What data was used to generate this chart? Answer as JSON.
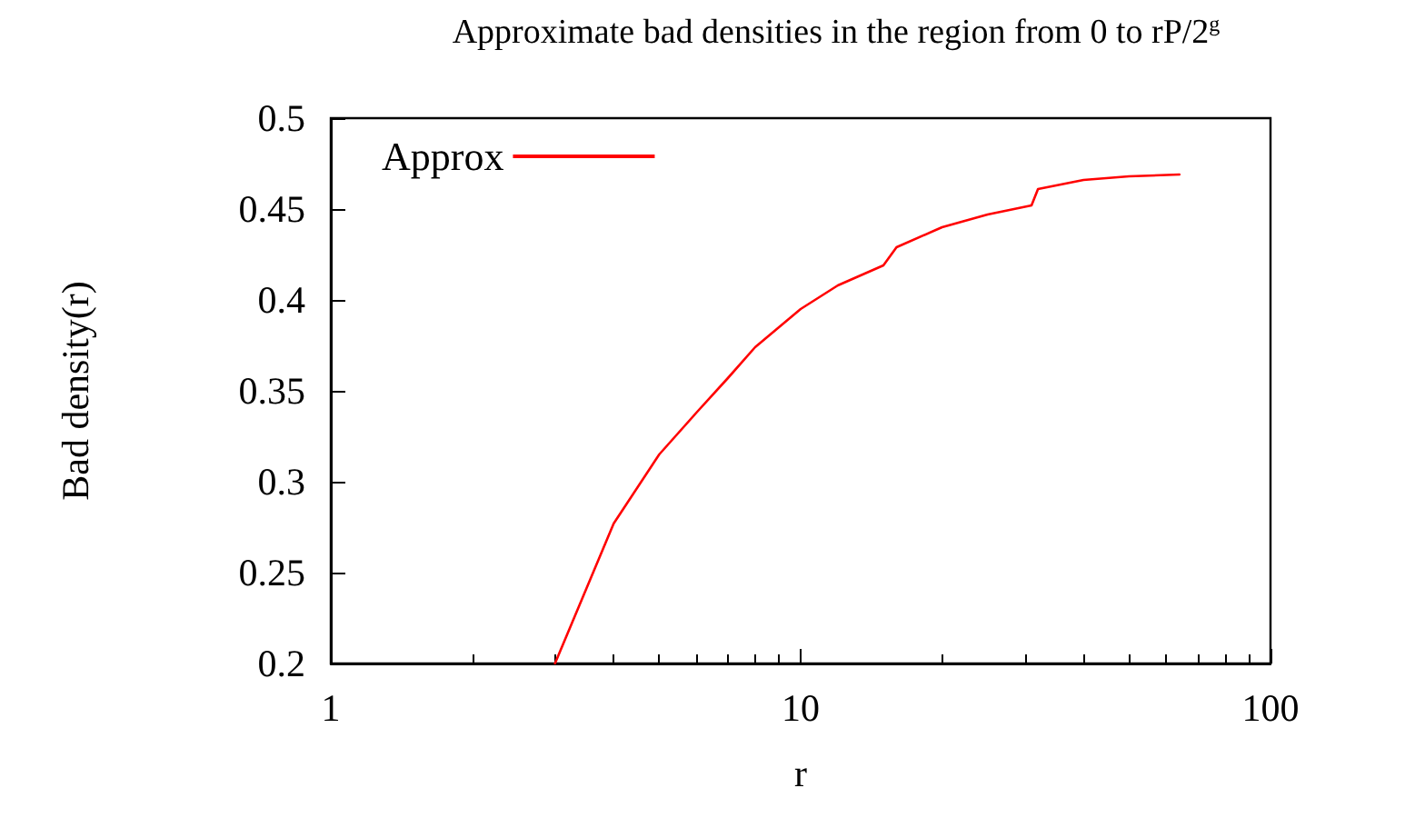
{
  "chart_data": {
    "type": "line",
    "title": "Approximate bad densities in the region from 0 to rP/2$^{g}$",
    "xlabel": "r",
    "ylabel": "Bad density(r)",
    "log": "x",
    "x": [
      3,
      4,
      5,
      6,
      7,
      8,
      10,
      12,
      15,
      16,
      20,
      25,
      31,
      32,
      40,
      50,
      64
    ],
    "series": [
      {
        "name": "Approx",
        "color": "#ff0000",
        "values": [
          0.2,
          0.277,
          0.315,
          0.338,
          0.357,
          0.374,
          0.395,
          0.408,
          0.419,
          0.429,
          0.44,
          0.447,
          0.452,
          0.461,
          0.466,
          0.468,
          0.469
        ]
      }
    ],
    "xlim": [
      1,
      100
    ],
    "xticks": [
      1,
      10,
      100
    ],
    "ylim": [
      0.2,
      0.5
    ],
    "yticks": [
      0.2,
      0.25,
      0.3,
      0.35,
      0.4,
      0.45,
      0.5
    ],
    "grid": false,
    "legend": "top left",
    "marker": "none",
    "line_style": "solid"
  }
}
